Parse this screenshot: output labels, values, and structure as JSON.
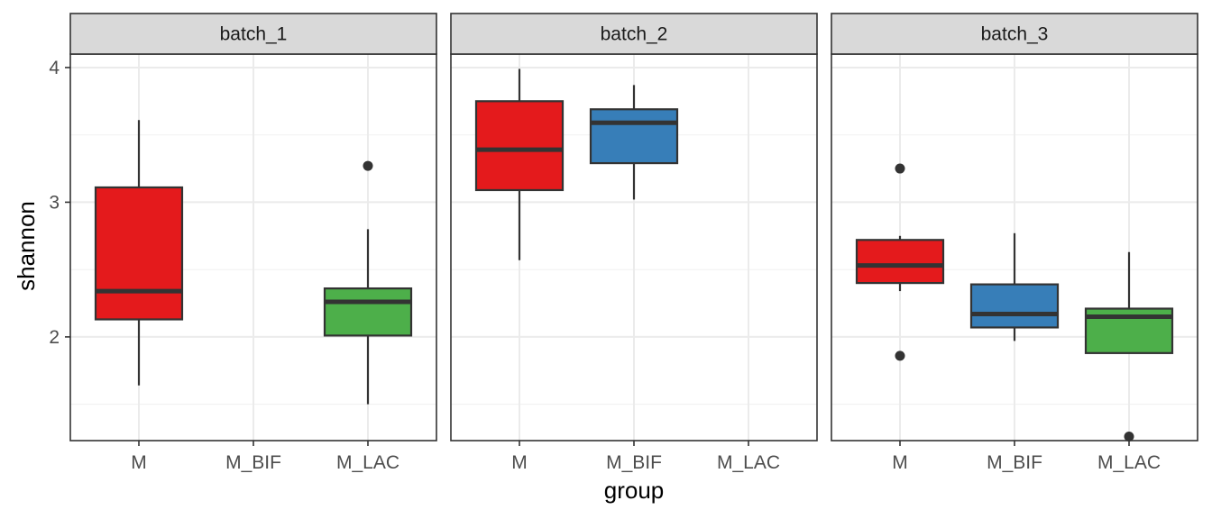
{
  "chart_data": {
    "type": "boxplot",
    "xlabel": "group",
    "ylabel": "shannon",
    "categories": [
      "M",
      "M_BIF",
      "M_LAC"
    ],
    "ylim": [
      1.23,
      4.1
    ],
    "yticks": [
      2,
      3,
      4
    ],
    "grid": true,
    "colors": {
      "M": "#E41A1C",
      "M_BIF": "#377EB8",
      "M_LAC": "#4DAF4A"
    },
    "panels": [
      {
        "strip": "batch_1",
        "boxes": [
          {
            "group": "M",
            "whisker_low": 1.64,
            "q1": 2.13,
            "median": 2.34,
            "q3": 3.11,
            "whisker_high": 3.61,
            "outliers": []
          },
          {
            "group": "M_LAC",
            "whisker_low": 1.5,
            "q1": 2.01,
            "median": 2.26,
            "q3": 2.36,
            "whisker_high": 2.8,
            "outliers": [
              3.27
            ]
          }
        ]
      },
      {
        "strip": "batch_2",
        "boxes": [
          {
            "group": "M",
            "whisker_low": 2.57,
            "q1": 3.09,
            "median": 3.39,
            "q3": 3.75,
            "whisker_high": 3.99,
            "outliers": []
          },
          {
            "group": "M_BIF",
            "whisker_low": 3.02,
            "q1": 3.29,
            "median": 3.59,
            "q3": 3.69,
            "whisker_high": 3.87,
            "outliers": []
          }
        ]
      },
      {
        "strip": "batch_3",
        "boxes": [
          {
            "group": "M",
            "whisker_low": 2.34,
            "q1": 2.4,
            "median": 2.53,
            "q3": 2.72,
            "whisker_high": 2.75,
            "outliers": [
              3.25,
              1.86
            ]
          },
          {
            "group": "M_BIF",
            "whisker_low": 1.97,
            "q1": 2.07,
            "median": 2.17,
            "q3": 2.39,
            "whisker_high": 2.77,
            "outliers": []
          },
          {
            "group": "M_LAC",
            "whisker_low": 1.88,
            "q1": 1.88,
            "median": 2.15,
            "q3": 2.21,
            "whisker_high": 2.63,
            "outliers": [
              1.26
            ]
          }
        ]
      }
    ]
  }
}
